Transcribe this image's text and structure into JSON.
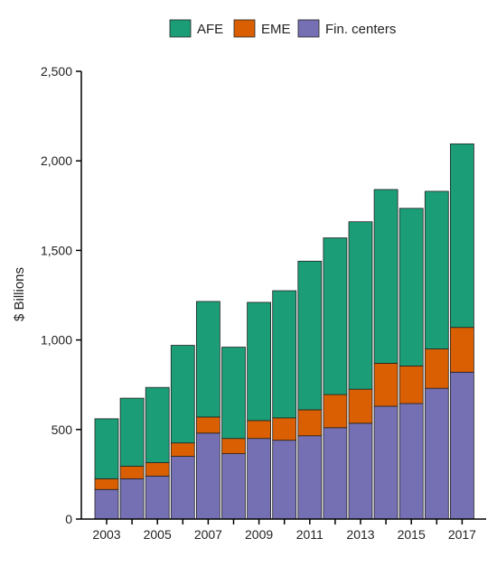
{
  "chart_data": {
    "type": "bar",
    "stacked": true,
    "title": "",
    "xlabel": "",
    "ylabel": "$ Billions",
    "ylim": [
      0,
      2500
    ],
    "yticks": [
      0,
      500,
      1000,
      1500,
      2000,
      2500
    ],
    "ytick_labels": [
      "0",
      "500",
      "1,000",
      "1,500",
      "2,000",
      "2,500"
    ],
    "categories": [
      "2003",
      "2004",
      "2005",
      "2006",
      "2007",
      "2008",
      "2009",
      "2010",
      "2011",
      "2012",
      "2013",
      "2014",
      "2015",
      "2016",
      "2017"
    ],
    "xtick_labels": [
      "2003",
      "2005",
      "2007",
      "2009",
      "2011",
      "2013",
      "2015",
      "2017"
    ],
    "grid": false,
    "legend_position": "top",
    "series": [
      {
        "name": "Fin. centers",
        "color": "#7570b3",
        "values": [
          165,
          225,
          240,
          350,
          480,
          365,
          450,
          440,
          465,
          510,
          535,
          630,
          645,
          730,
          820
        ]
      },
      {
        "name": "EME",
        "color": "#d95f02",
        "values": [
          60,
          70,
          75,
          75,
          90,
          85,
          100,
          125,
          145,
          185,
          190,
          240,
          210,
          220,
          250
        ]
      },
      {
        "name": "AFE",
        "color": "#1b9e77",
        "values": [
          335,
          380,
          420,
          545,
          645,
          510,
          660,
          710,
          830,
          875,
          935,
          970,
          880,
          880,
          1025
        ]
      }
    ],
    "legend_order": [
      "AFE",
      "EME",
      "Fin. centers"
    ]
  }
}
